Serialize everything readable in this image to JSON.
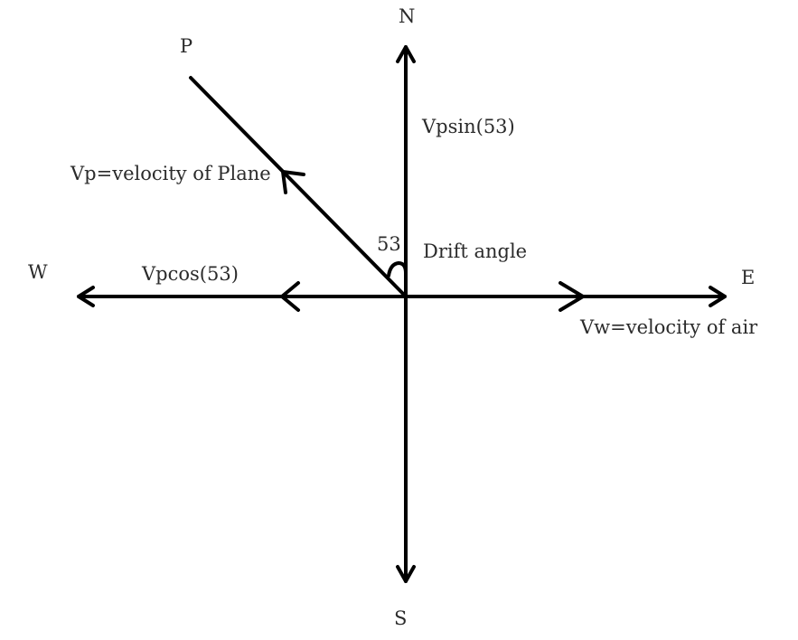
{
  "directions": {
    "north": "N",
    "south": "S",
    "east": "E",
    "west": "W"
  },
  "point_label": "P",
  "labels": {
    "vp_sin": "Vpsin(53)",
    "vp_def": "Vp=velocity of Plane",
    "angle_value": "53",
    "drift_angle": "Drift angle",
    "vp_cos": "Vpcos(53)",
    "vw_def": "Vw=velocity of air"
  },
  "colors": {
    "line": "#000000",
    "text": "#2b2b2b"
  }
}
